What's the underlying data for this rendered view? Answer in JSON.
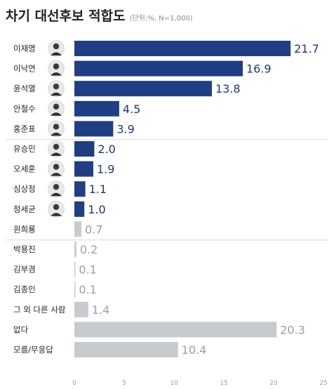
{
  "header": {
    "title": "차기 대선후보 적합도",
    "subtitle": "(단위:%, N=1,000)"
  },
  "colors": {
    "highlight": "#1f3e84",
    "muted": "#c7cbd0",
    "value_dark": "#1a3a78",
    "value_muted": "#9aa0a6"
  },
  "chart_data": {
    "type": "bar",
    "orientation": "horizontal",
    "title": "차기 대선후보 적합도",
    "subtitle": "(단위:%, N=1,000)",
    "xlim": [
      0,
      25
    ],
    "xticks": [
      0,
      5,
      10,
      15,
      20,
      25
    ],
    "grid": false,
    "categories": [
      "이재명",
      "이낙연",
      "윤석열",
      "안철수",
      "홍준표",
      "유승민",
      "오세훈",
      "심상정",
      "정세균",
      "원희룡",
      "박용진",
      "김부겸",
      "김종인",
      "그 외 다른 사람",
      "없다",
      "모름/무응답"
    ],
    "values": [
      21.7,
      16.9,
      13.8,
      4.5,
      3.9,
      2.0,
      1.9,
      1.1,
      1.0,
      0.7,
      0.2,
      0.1,
      0.1,
      1.4,
      20.3,
      10.4
    ],
    "value_labels": [
      "21.7",
      "16.9",
      "13.8",
      "4.5",
      "3.9",
      "2.0",
      "1.9",
      "1.1",
      "1.0",
      "0.7",
      "0.2",
      "0.1",
      "0.1",
      "1.4",
      "20.3",
      "10.4"
    ],
    "highlighted": [
      true,
      true,
      true,
      true,
      true,
      true,
      true,
      true,
      true,
      false,
      false,
      false,
      false,
      false,
      false,
      false
    ],
    "has_photo": [
      true,
      true,
      true,
      true,
      true,
      true,
      true,
      true,
      true,
      false,
      false,
      false,
      false,
      false,
      false,
      false
    ],
    "group_breaks_after": [
      4,
      9
    ]
  }
}
